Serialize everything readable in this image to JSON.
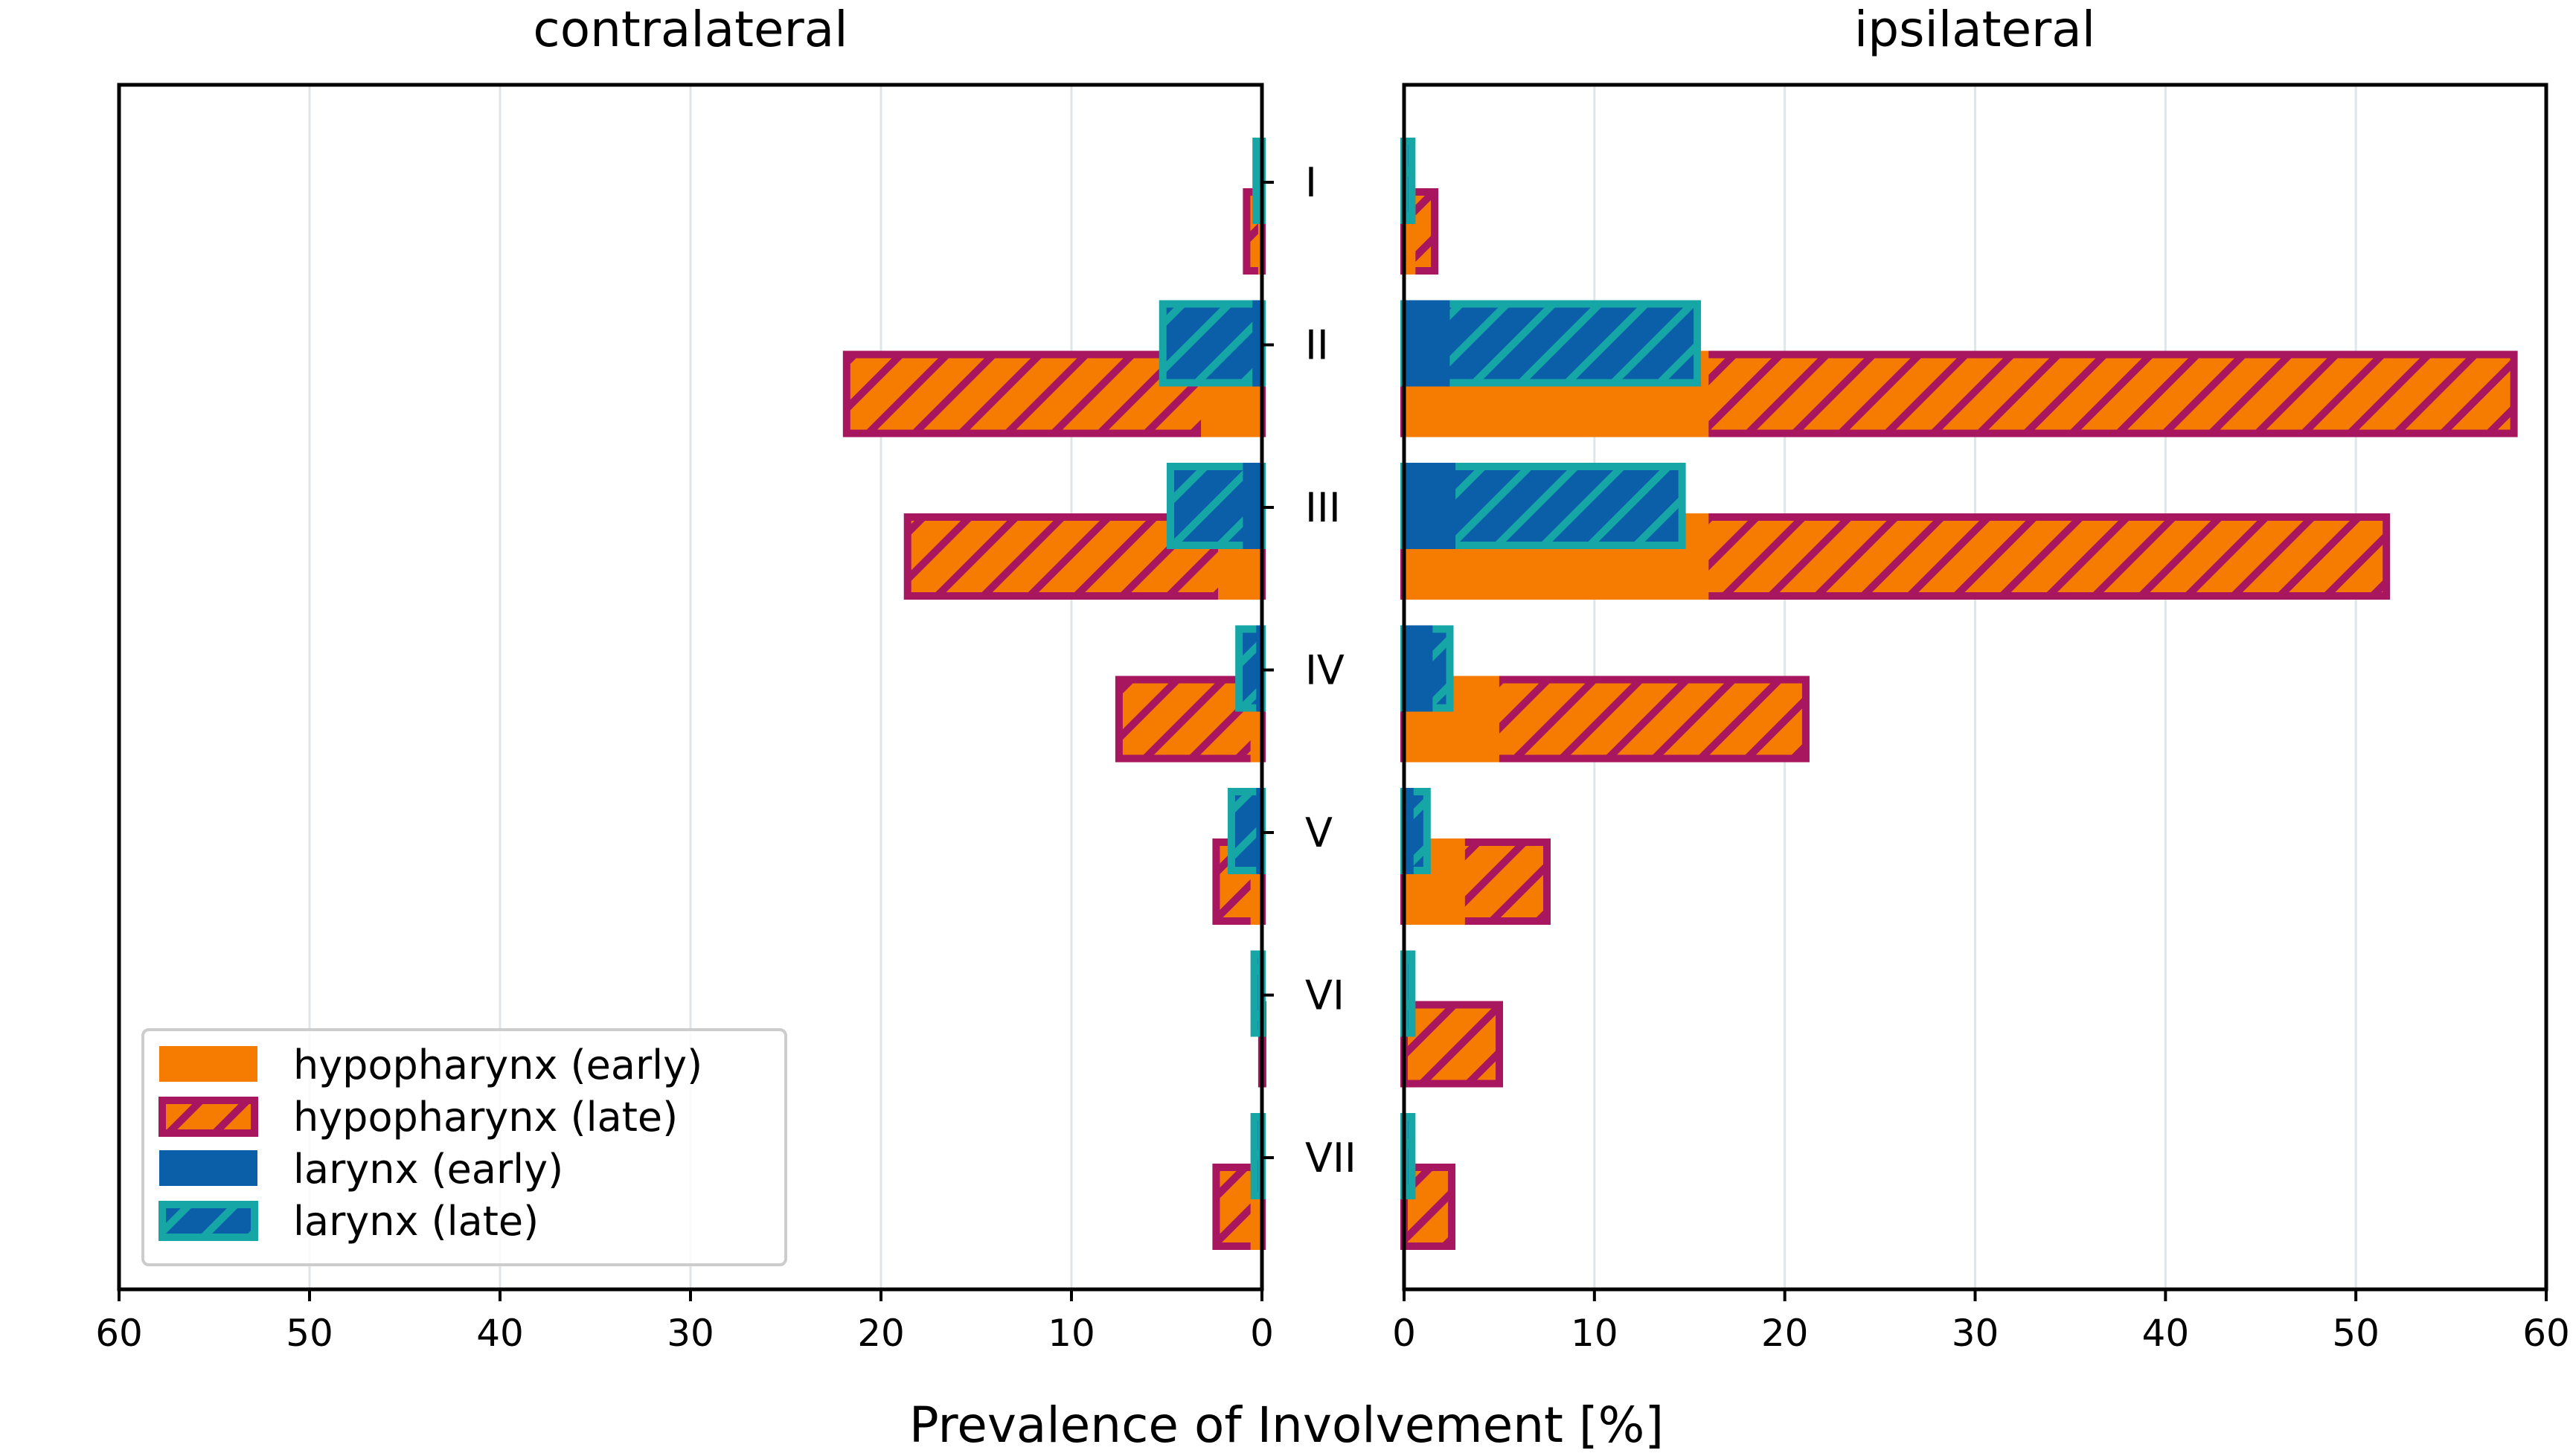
{
  "chart_data": {
    "type": "bar",
    "orientation": "horizontal",
    "panels": [
      {
        "title": "contralateral",
        "xlim": [
          60,
          0
        ],
        "xticks": [
          60,
          50,
          40,
          30,
          20,
          10,
          0
        ]
      },
      {
        "title": "ipsilateral",
        "xlim": [
          0,
          60
        ],
        "xticks": [
          0,
          10,
          20,
          30,
          40,
          50,
          60
        ]
      }
    ],
    "categories": [
      "I",
      "II",
      "III",
      "IV",
      "V",
      "VI",
      "VII"
    ],
    "xlabel": "Prevalence of Involvement [%]",
    "grid": "vertical",
    "legend_position": "lower-left",
    "series": [
      {
        "name": "hypopharynx (early)",
        "color": "#F57C00",
        "hatched": false,
        "contralateral": [
          0.2,
          3.2,
          2.3,
          0.6,
          0.6,
          0.0,
          0.6
        ],
        "ipsilateral": [
          0.6,
          16.0,
          16.0,
          5.0,
          3.2,
          0.0,
          0.0
        ]
      },
      {
        "name": "hypopharynx (late)",
        "color": "#F57C00",
        "edge_color": "#A8165F",
        "hatched": true,
        "contralateral": [
          1.0,
          22.0,
          18.8,
          7.7,
          2.6,
          0.2,
          2.6
        ],
        "ipsilateral": [
          1.8,
          58.5,
          51.8,
          21.3,
          7.7,
          5.2,
          2.7
        ]
      },
      {
        "name": "larynx (early)",
        "color": "#0B5FA8",
        "hatched": false,
        "contralateral": [
          0.0,
          0.5,
          1.0,
          0.3,
          0.3,
          0.0,
          0.0
        ],
        "ipsilateral": [
          0.0,
          2.4,
          2.7,
          1.5,
          0.5,
          0.0,
          0.0
        ]
      },
      {
        "name": "larynx (late)",
        "color": "#0B5FA8",
        "edge_color": "#16A6A6",
        "hatched": true,
        "contralateral": [
          0.5,
          5.4,
          5.0,
          1.4,
          1.8,
          0.6,
          0.6
        ],
        "ipsilateral": [
          0.6,
          15.6,
          14.8,
          2.6,
          1.4,
          0.6,
          0.6
        ]
      }
    ]
  }
}
